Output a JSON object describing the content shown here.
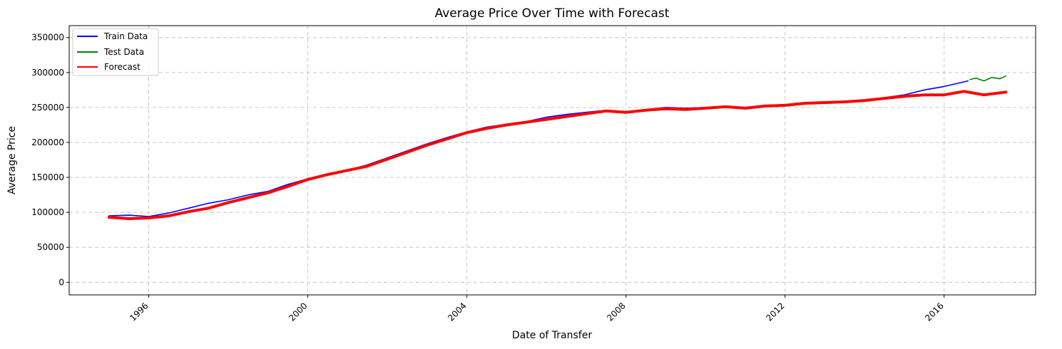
{
  "chart_data": {
    "type": "line",
    "title": "Average Price Over Time with Forecast",
    "xlabel": "Date of Transfer",
    "ylabel": "Average Price",
    "xlim": [
      1994.0,
      2018.3
    ],
    "ylim": [
      -18000,
      367000
    ],
    "x_ticks": [
      1996,
      2000,
      2004,
      2008,
      2012,
      2016
    ],
    "x_tick_labels": [
      "1996",
      "2000",
      "2004",
      "2008",
      "2012",
      "2016"
    ],
    "y_ticks": [
      0,
      50000,
      100000,
      150000,
      200000,
      250000,
      300000,
      350000
    ],
    "y_tick_labels": [
      "0",
      "50000",
      "100000",
      "150000",
      "200000",
      "250000",
      "300000",
      "350000"
    ],
    "grid": true,
    "legend_position": "top-left",
    "series": [
      {
        "name": "Train Data",
        "color": "#0000ff",
        "x": [
          1995.0,
          1995.5,
          1996.0,
          1996.5,
          1997.0,
          1997.5,
          1998.0,
          1998.5,
          1999.0,
          1999.5,
          2000.0,
          2000.5,
          2001.0,
          2001.5,
          2002.0,
          2002.5,
          2003.0,
          2003.5,
          2004.0,
          2004.5,
          2005.0,
          2005.5,
          2006.0,
          2006.5,
          2007.0,
          2007.5,
          2008.0,
          2008.5,
          2009.0,
          2009.5,
          2010.0,
          2010.5,
          2011.0,
          2011.5,
          2012.0,
          2012.5,
          2013.0,
          2013.5,
          2014.0,
          2014.5,
          2015.0,
          2015.5,
          2016.0,
          2016.6
        ],
        "y": [
          95000,
          96000,
          94000,
          99000,
          106000,
          113000,
          118000,
          125000,
          130000,
          140000,
          148000,
          155000,
          160000,
          168000,
          178000,
          188000,
          198000,
          207000,
          215000,
          222000,
          226000,
          230000,
          236000,
          240000,
          243000,
          246000,
          244000,
          247000,
          250000,
          249000,
          250000,
          252000,
          250000,
          253000,
          254000,
          257000,
          258000,
          259000,
          261000,
          264000,
          268000,
          275000,
          280000,
          288000
        ]
      },
      {
        "name": "Test Data",
        "color": "#008000",
        "x": [
          2016.65,
          2016.8,
          2017.0,
          2017.2,
          2017.4,
          2017.55
        ],
        "y": [
          290000,
          292000,
          288000,
          293000,
          291000,
          295000
        ]
      },
      {
        "name": "Forecast",
        "color": "#ff0000",
        "x": [
          1995.0,
          1995.5,
          1996.0,
          1996.5,
          1997.0,
          1997.5,
          1998.0,
          1998.5,
          1999.0,
          1999.5,
          2000.0,
          2000.5,
          2001.0,
          2001.5,
          2002.0,
          2002.5,
          2003.0,
          2003.5,
          2004.0,
          2004.5,
          2005.0,
          2005.5,
          2006.0,
          2006.5,
          2007.0,
          2007.5,
          2008.0,
          2008.5,
          2009.0,
          2009.5,
          2010.0,
          2010.5,
          2011.0,
          2011.5,
          2012.0,
          2012.5,
          2013.0,
          2013.5,
          2014.0,
          2014.5,
          2015.0,
          2015.5,
          2016.0,
          2016.5,
          2017.0,
          2017.55
        ],
        "y": [
          93000,
          91000,
          92000,
          95000,
          101000,
          106000,
          114000,
          121000,
          128000,
          137000,
          147000,
          154000,
          160000,
          166000,
          176000,
          186000,
          196000,
          205000,
          214000,
          220000,
          225000,
          229000,
          233000,
          237000,
          241000,
          245000,
          243000,
          246000,
          248000,
          247000,
          249000,
          251000,
          249000,
          252000,
          253000,
          256000,
          257000,
          258000,
          260000,
          263000,
          266000,
          268000,
          268000,
          273000,
          268000,
          272000
        ]
      }
    ]
  }
}
